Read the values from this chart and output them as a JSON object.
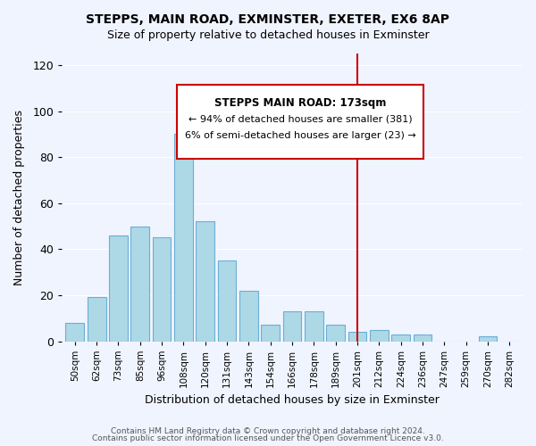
{
  "title": "STEPPS, MAIN ROAD, EXMINSTER, EXETER, EX6 8AP",
  "subtitle": "Size of property relative to detached houses in Exminster",
  "xlabel": "Distribution of detached houses by size in Exminster",
  "ylabel": "Number of detached properties",
  "bar_labels": [
    "50sqm",
    "62sqm",
    "73sqm",
    "85sqm",
    "96sqm",
    "108sqm",
    "120sqm",
    "131sqm",
    "143sqm",
    "154sqm",
    "166sqm",
    "178sqm",
    "189sqm",
    "201sqm",
    "212sqm",
    "224sqm",
    "236sqm",
    "247sqm",
    "259sqm",
    "270sqm",
    "282sqm"
  ],
  "bar_values": [
    8,
    19,
    46,
    50,
    45,
    90,
    52,
    35,
    22,
    7,
    13,
    13,
    7,
    4,
    5,
    3,
    3,
    0,
    0,
    2,
    0
  ],
  "bar_color": "#add8e6",
  "bar_edge_color": "#6baed6",
  "vline_x": 13,
  "vline_color": "#cc0000",
  "annotation_title": "STEPPS MAIN ROAD: 173sqm",
  "annotation_line1": "← 94% of detached houses are smaller (381)",
  "annotation_line2": "6% of semi-detached houses are larger (23) →",
  "annotation_box_color": "#ffffff",
  "annotation_box_edge": "#cc0000",
  "footer_line1": "Contains HM Land Registry data © Crown copyright and database right 2024.",
  "footer_line2": "Contains public sector information licensed under the Open Government Licence v3.0.",
  "ylim": [
    0,
    125
  ],
  "yticks": [
    0,
    20,
    40,
    60,
    80,
    100,
    120
  ],
  "background_color": "#f0f4ff",
  "grid_color": "#ffffff"
}
